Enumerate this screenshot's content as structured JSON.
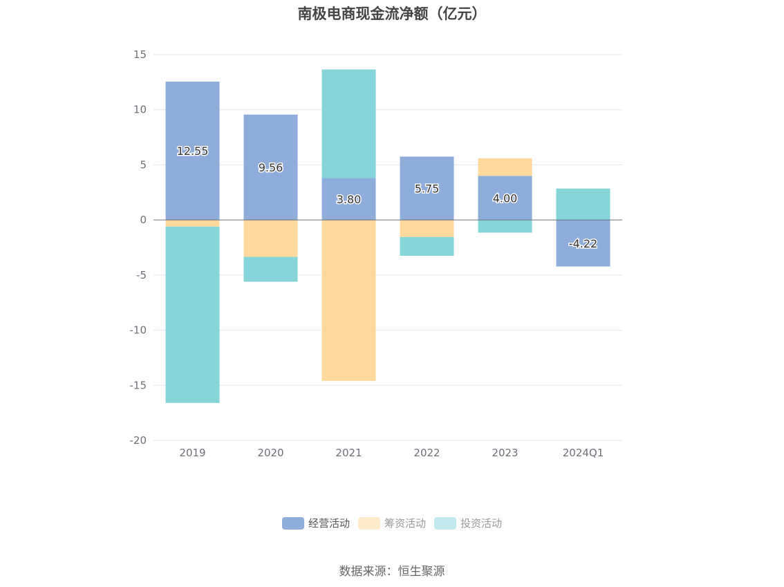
{
  "chart_data": {
    "type": "bar",
    "stacked": true,
    "title": "南极电商现金流净额（亿元）",
    "categories": [
      "2019",
      "2020",
      "2021",
      "2022",
      "2023",
      "2024Q1"
    ],
    "ylim": [
      -20,
      15
    ],
    "yticks": [
      15,
      10,
      5,
      0,
      -5,
      -10,
      -15,
      -20
    ],
    "grid": true,
    "legend_position": "bottom",
    "series": [
      {
        "name": "经营活动",
        "color": "#8eaddb",
        "values": [
          12.55,
          9.56,
          3.8,
          5.75,
          4.0,
          -4.22
        ],
        "labels": [
          "12.55",
          "9.56",
          "3.80",
          "5.75",
          "4.00",
          "-4.22"
        ]
      },
      {
        "name": "筹资活动",
        "color": "#ffd99b",
        "values": [
          -0.6,
          -3.35,
          -14.6,
          -1.55,
          1.6,
          0.0
        ]
      },
      {
        "name": "投资活动",
        "color": "#86d5d9",
        "values": [
          -16.0,
          -2.25,
          9.85,
          -1.7,
          -1.15,
          2.85
        ]
      }
    ],
    "source": "数据来源：恒生聚源"
  }
}
